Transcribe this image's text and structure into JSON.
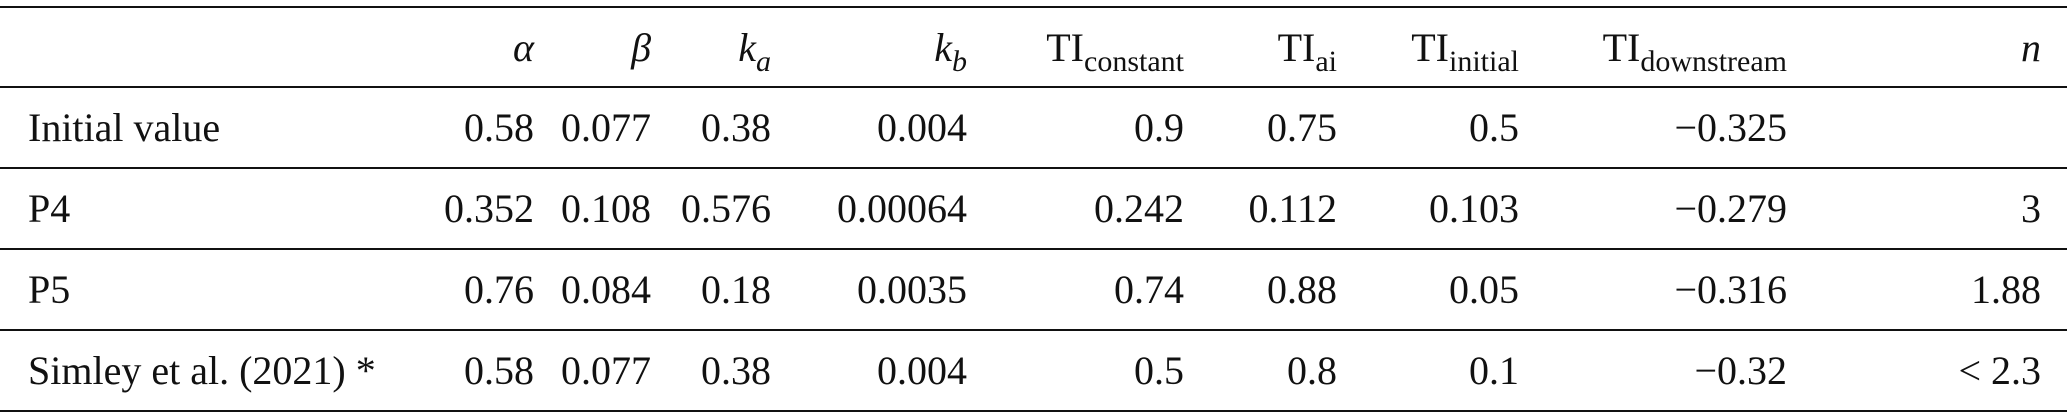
{
  "table": {
    "columns": [
      {
        "key": "label",
        "symbol": "",
        "sub": ""
      },
      {
        "key": "alpha",
        "symbol": "α",
        "sub": ""
      },
      {
        "key": "beta",
        "symbol": "β",
        "sub": ""
      },
      {
        "key": "k_a",
        "symbol": "k",
        "sub": "a"
      },
      {
        "key": "k_b",
        "symbol": "k",
        "sub": "b"
      },
      {
        "key": "TI_constant",
        "symbol": "TI",
        "sub": "constant"
      },
      {
        "key": "TI_ai",
        "symbol": "TI",
        "sub": "ai"
      },
      {
        "key": "TI_initial",
        "symbol": "TI",
        "sub": "initial"
      },
      {
        "key": "TI_downstream",
        "symbol": "TI",
        "sub": "downstream"
      },
      {
        "key": "n",
        "symbol": "n",
        "sub": ""
      }
    ],
    "rows": [
      {
        "label": "Initial value",
        "cells": [
          "0.58",
          "0.077",
          "0.38",
          "0.004",
          "0.9",
          "0.75",
          "0.5",
          "−0.325",
          ""
        ]
      },
      {
        "label": "P4",
        "cells": [
          "0.352",
          "0.108",
          "0.576",
          "0.00064",
          "0.242",
          "0.112",
          "0.103",
          "−0.279",
          "3"
        ]
      },
      {
        "label": "P5",
        "cells": [
          "0.76",
          "0.084",
          "0.18",
          "0.0035",
          "0.74",
          "0.88",
          "0.05",
          "−0.316",
          "1.88"
        ]
      },
      {
        "label": "Simley et al. (2021) *",
        "cells": [
          "0.58",
          "0.077",
          "0.38",
          "0.004",
          "0.5",
          "0.8",
          "0.1",
          "−0.32",
          "< 2.3"
        ]
      }
    ]
  }
}
